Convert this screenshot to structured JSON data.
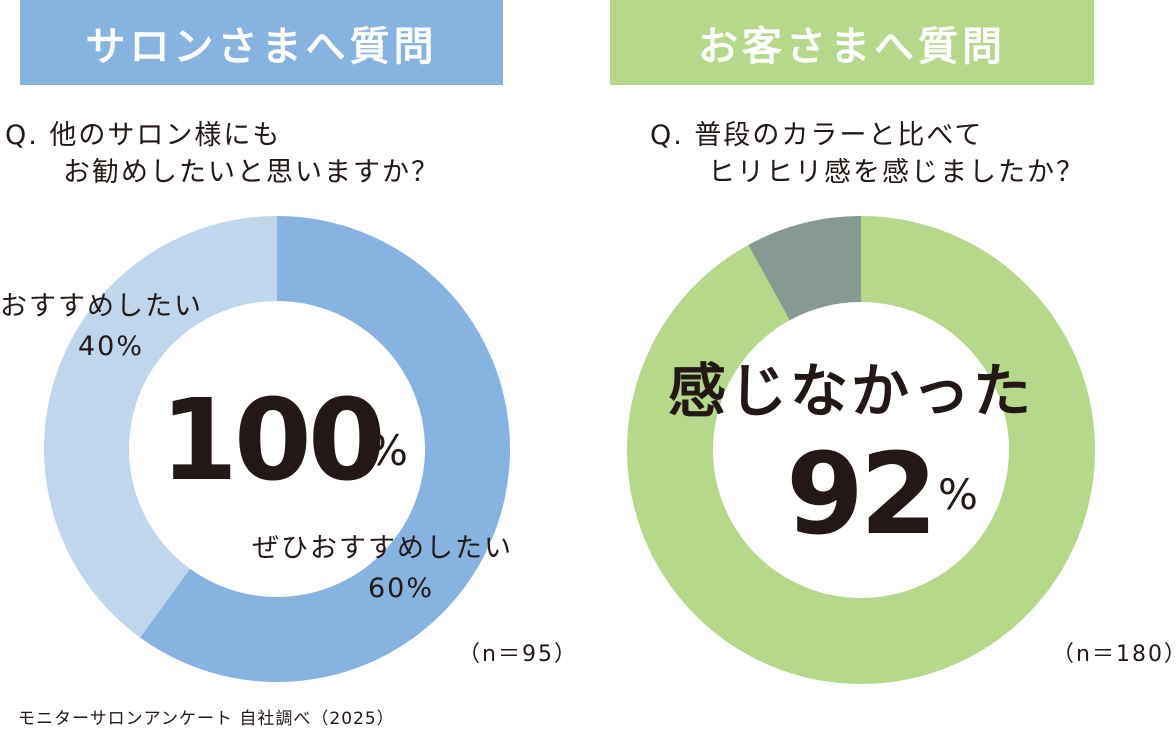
{
  "colors": {
    "left_banner": "#86b3df",
    "right_banner": "#b6d88b",
    "left_strong": "#86b3df",
    "left_light": "#c0d6ec",
    "right_main": "#b6d88b",
    "right_other": "#869a92",
    "text": "#231815"
  },
  "left": {
    "banner": "サロンさまへ質問",
    "question_lines": [
      "Q. 他のサロン様にも",
      "お勧めしたいと思いますか？"
    ],
    "center_value": "100",
    "center_unit": "%",
    "n_label": "（n＝95）"
  },
  "right": {
    "banner": "お客さまへ質問",
    "question_lines": [
      "Q. 普段のカラーと比べて",
      "ヒリヒリ感を感じましたか？"
    ],
    "center_text": "感じなかった",
    "center_value": "92",
    "center_unit": "%",
    "n_label": "（n＝180）"
  },
  "source": "モニターサロンアンケート 自社調べ（2025）",
  "chart_data": [
    {
      "type": "pie",
      "title": "サロンさまへ質問",
      "categories": [
        "ぜひおすすめしたい",
        "おすすめしたい"
      ],
      "values": [
        60,
        40
      ],
      "unit": "%",
      "labels": [
        {
          "name": "ぜひおすすめしたい",
          "value": "60%"
        },
        {
          "name": "おすすめしたい",
          "value": "40%"
        }
      ]
    },
    {
      "type": "pie",
      "title": "お客さまへ質問",
      "categories": [
        "感じなかった",
        ""
      ],
      "values": [
        92,
        8
      ],
      "unit": "%"
    }
  ]
}
